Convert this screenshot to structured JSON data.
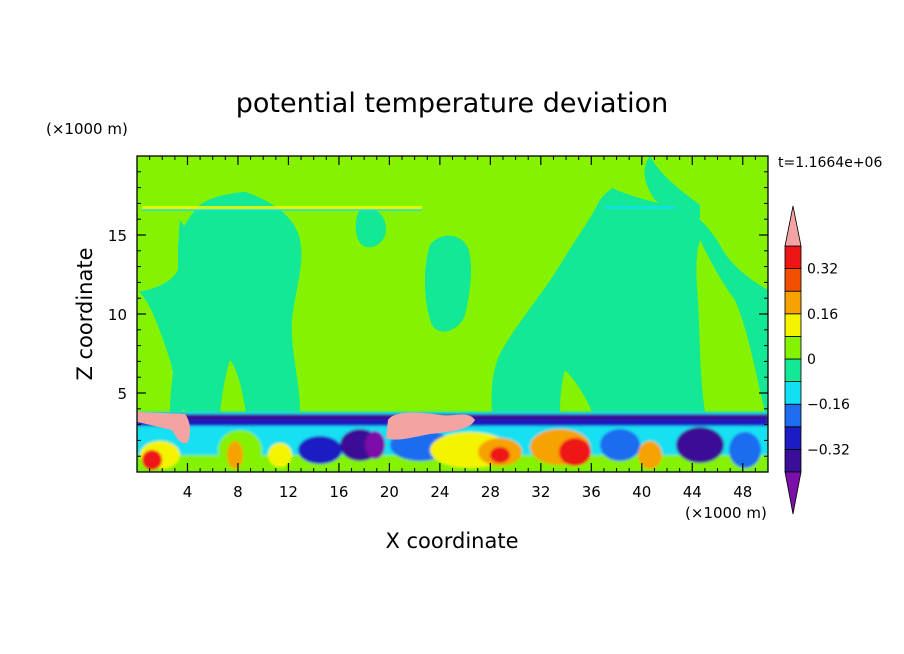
{
  "chart_data": {
    "type": "heatmap",
    "title": "potential temperature deviation",
    "xlabel": "X coordinate",
    "ylabel": "Z coordinate",
    "x_unit": "(×1000 m)",
    "y_unit": "(×1000 m)",
    "time_label": "t=1.1664e+06",
    "xlim": [
      0,
      50
    ],
    "ylim": [
      0,
      20
    ],
    "x_ticks": [
      4,
      8,
      12,
      16,
      20,
      24,
      28,
      32,
      36,
      40,
      44,
      48
    ],
    "y_ticks": [
      5,
      10,
      15
    ],
    "colorbar": {
      "levels": [
        -0.4,
        -0.32,
        -0.24,
        -0.16,
        -0.08,
        0,
        0.08,
        0.16,
        0.24,
        0.32,
        0.4
      ],
      "tick_labels": [
        "0.32",
        "0.16",
        "0",
        "-0.16",
        "-0.32"
      ],
      "tick_values": [
        0.32,
        0.16,
        0,
        -0.16,
        -0.32
      ],
      "colors": [
        "#7b10a8",
        "#3a0e96",
        "#1c1cc4",
        "#1e6cf0",
        "#12e0f2",
        "#12e896",
        "#84f200",
        "#f4f400",
        "#f6a200",
        "#f25000",
        "#ee1515",
        "#f4a3a3"
      ]
    },
    "regions": [
      {
        "level": "0.08",
        "note": "upper-left plume",
        "x": [
          3.5,
          8.5
        ],
        "z": [
          5,
          15
        ]
      },
      {
        "level": "0.08",
        "note": "central plume",
        "x": [
          22,
          27
        ],
        "z": [
          9,
          15
        ]
      },
      {
        "level": "0.08",
        "note": "right plume",
        "x": [
          44,
          49
        ],
        "z": [
          4,
          14
        ]
      },
      {
        "level": "0.4",
        "note": "pink patch",
        "x": [
          20,
          26
        ],
        "z": [
          2,
          3.6
        ]
      },
      {
        "level": "-0.32",
        "note": "dark blue boundary layer",
        "x": [
          0,
          50
        ],
        "z": [
          0,
          3.5
        ]
      }
    ]
  }
}
